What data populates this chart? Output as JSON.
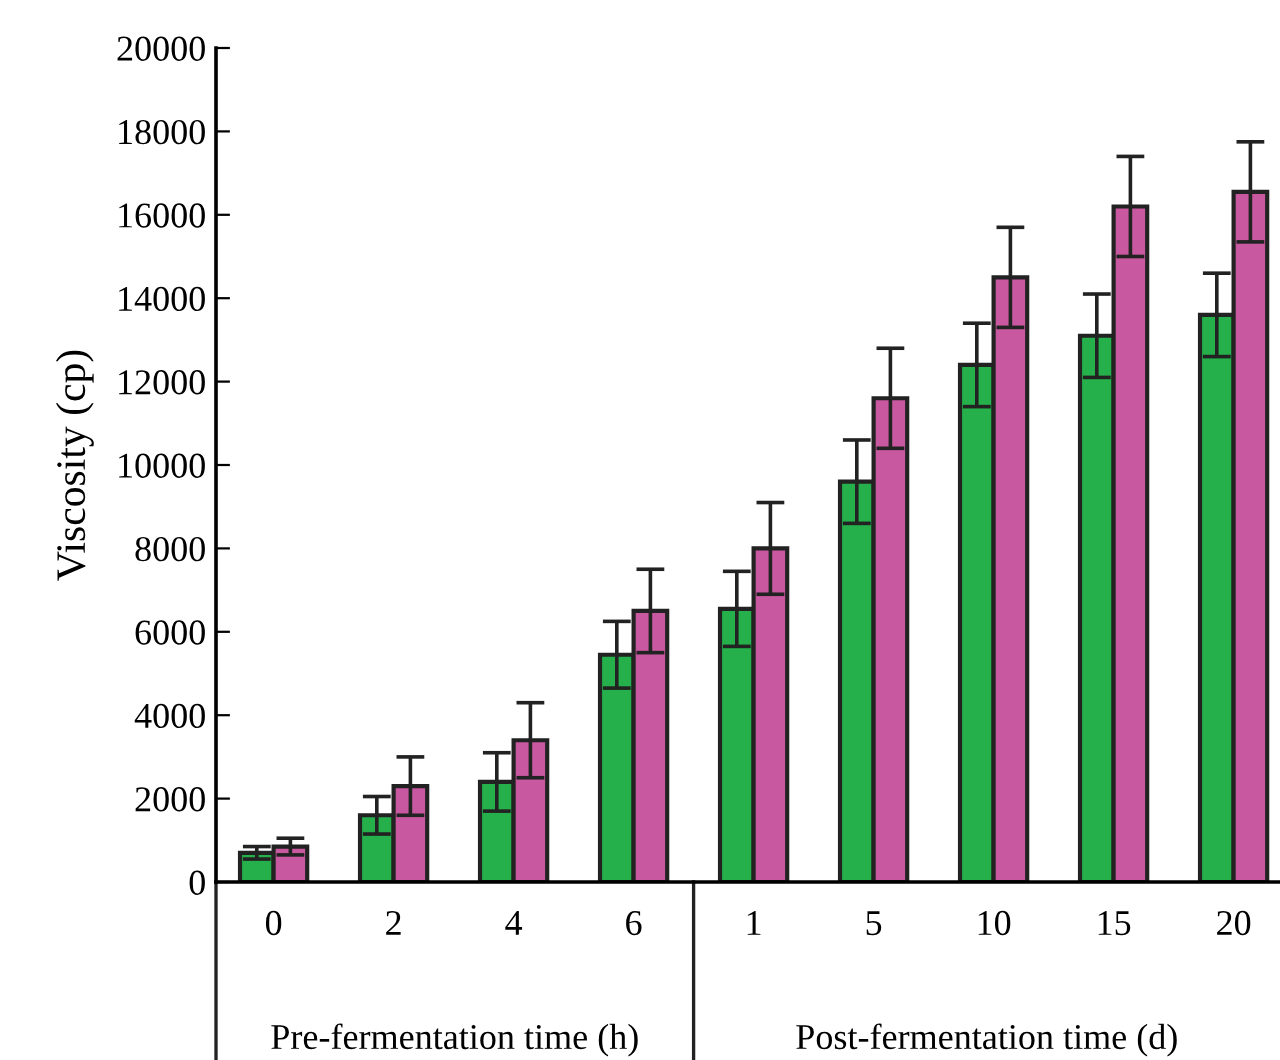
{
  "chart_data": {
    "type": "bar",
    "ylabel": "Viscosity (cp)",
    "categories": [
      "0",
      "2",
      "4",
      "6",
      "1",
      "5",
      "10",
      "15",
      "20"
    ],
    "series": [
      {
        "color": "#25b04b",
        "values": [
          700,
          1600,
          2400,
          5450,
          6550,
          9600,
          12400,
          13100,
          13600
        ],
        "errors": [
          150,
          450,
          700,
          800,
          900,
          1000,
          1000,
          1000,
          1000
        ]
      },
      {
        "color": "#c858a0",
        "values": [
          850,
          2300,
          3400,
          6500,
          8000,
          11600,
          14500,
          16200,
          16550
        ],
        "errors": [
          200,
          700,
          900,
          1000,
          1100,
          1200,
          1200,
          1200,
          1200
        ]
      }
    ],
    "ylim": [
      0,
      20000
    ],
    "yticks": [
      0,
      2000,
      4000,
      6000,
      8000,
      10000,
      12000,
      14000,
      16000,
      18000,
      20000
    ],
    "annotations": [
      "Pre-fermentation time (h)",
      "Post-fermentation time (d)"
    ],
    "grid": false,
    "legend": false
  }
}
